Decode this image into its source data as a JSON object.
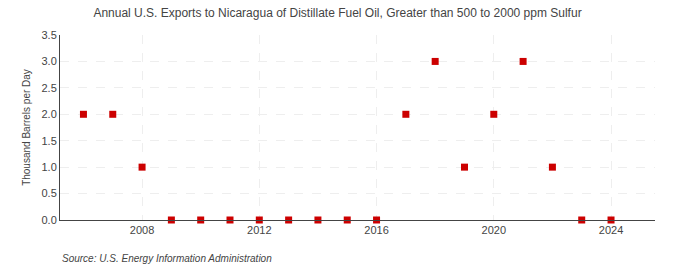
{
  "chart_data": {
    "type": "scatter",
    "title": "Annual U.S. Exports to Nicaragua of Distillate Fuel Oil, Greater than 500 to 2000 ppm Sulfur",
    "ylabel": "Thousand Barrels per Day",
    "annotations": [
      "Source: U.S. Energy Information Administration"
    ],
    "x": [
      2006,
      2007,
      2008,
      2009,
      2010,
      2011,
      2012,
      2013,
      2014,
      2015,
      2016,
      2017,
      2018,
      2019,
      2020,
      2021,
      2022,
      2023,
      2024
    ],
    "values": [
      2.0,
      2.0,
      1.0,
      0.0,
      0.0,
      0.0,
      0.0,
      0.0,
      0.0,
      0.0,
      0.0,
      2.0,
      3.0,
      1.0,
      2.0,
      3.0,
      1.0,
      0.0,
      0.0
    ],
    "color": "#cc0000",
    "marker": "square",
    "xlim": [
      2005.2,
      2025.5
    ],
    "xticks": [
      2008,
      2012,
      2016,
      2020,
      2024
    ],
    "ylim": [
      0,
      3.5
    ],
    "yticks": [
      {
        "value": 0,
        "label": "0.0"
      },
      0.5,
      {
        "value": 1,
        "label": "1.0"
      },
      1.5,
      {
        "value": 2,
        "label": "2.0"
      },
      2.5,
      {
        "value": 3,
        "label": "3.0"
      },
      3.5
    ],
    "grid": true
  }
}
